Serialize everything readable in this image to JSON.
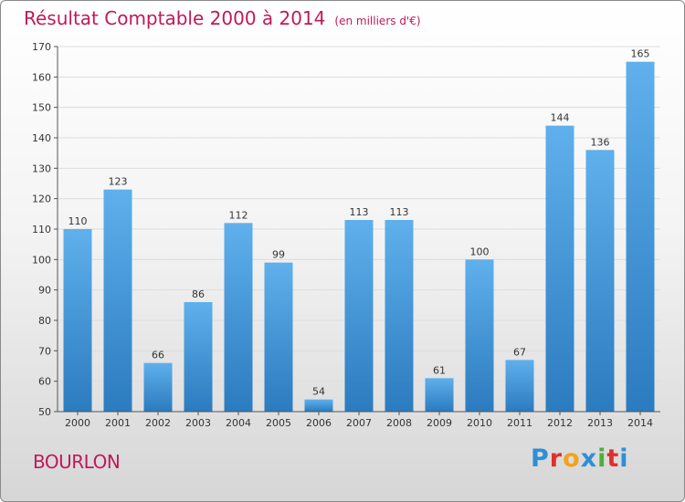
{
  "header": {
    "title": "Résultat Comptable 2000 à 2014",
    "subtitle": "(en milliers d'€)"
  },
  "footer": {
    "place": "BOURLON",
    "brand": "Proxiti",
    "brand_colors": [
      "#2e8fd6",
      "#e0302e",
      "#f2a21c",
      "#2e8fd6",
      "#4cae3c",
      "#e0302e",
      "#2e8fd6"
    ]
  },
  "colors": {
    "title": "#c0195a",
    "bar_top": "#5fb0ec",
    "bar_bottom": "#2b7bbf",
    "grid": "#dddddd",
    "axis_text": "#333333"
  },
  "chart_data": {
    "type": "bar",
    "title": "Résultat Comptable 2000 à 2014",
    "xlabel": "",
    "ylabel": "",
    "categories": [
      "2000",
      "2001",
      "2002",
      "2003",
      "2004",
      "2005",
      "2006",
      "2007",
      "2008",
      "2009",
      "2010",
      "2011",
      "2012",
      "2013",
      "2014"
    ],
    "values": [
      110,
      123,
      66,
      86,
      112,
      99,
      54,
      113,
      113,
      61,
      100,
      67,
      144,
      136,
      165
    ],
    "ylim": [
      50,
      170
    ],
    "yticks": [
      50,
      60,
      70,
      80,
      90,
      100,
      110,
      120,
      130,
      140,
      150,
      160,
      170
    ],
    "grid": true,
    "legend": "none"
  }
}
